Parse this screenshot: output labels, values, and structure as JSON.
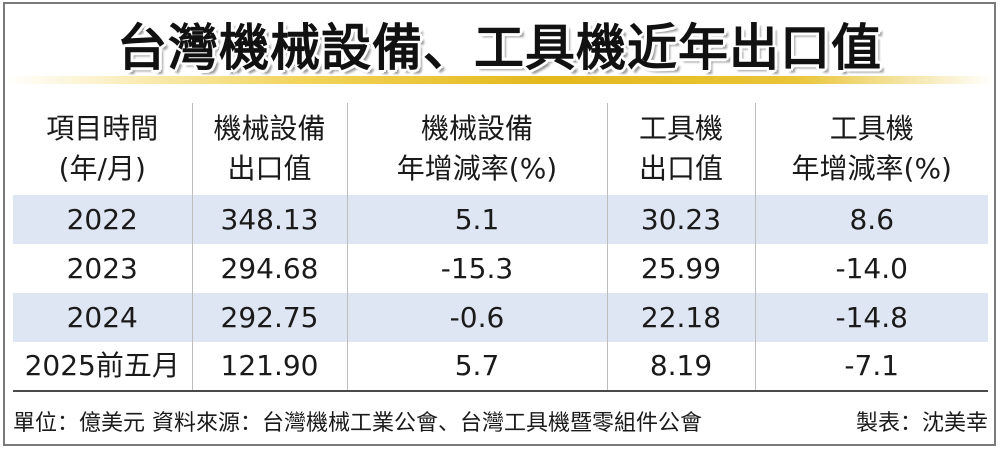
{
  "title": "台灣機械設備、工具機近年出口值",
  "table": {
    "headers": [
      [
        "項目時間",
        "(年/月)"
      ],
      [
        "機械設備",
        "出口值"
      ],
      [
        "機械設備",
        "年增減率(%)"
      ],
      [
        "工具機",
        "出口值"
      ],
      [
        "工具機",
        "年增減率(%)"
      ]
    ],
    "rows": [
      [
        "2022",
        "348.13",
        "5.1",
        "30.23",
        "8.6"
      ],
      [
        "2023",
        "294.68",
        "-15.3",
        "25.99",
        "-14.0"
      ],
      [
        "2024",
        "292.75",
        "-0.6",
        "22.18",
        "-14.8"
      ],
      [
        "2025前五月",
        "121.90",
        "5.7",
        "8.19",
        "-7.1"
      ]
    ]
  },
  "footer": {
    "source": "單位：億美元  資料來源：台灣機械工業公會、台灣工具機暨零組件公會",
    "credit": "製表：沈美幸"
  },
  "colors": {
    "row_band": "#dfe6f3",
    "accent_rule": "#e3b81c"
  }
}
